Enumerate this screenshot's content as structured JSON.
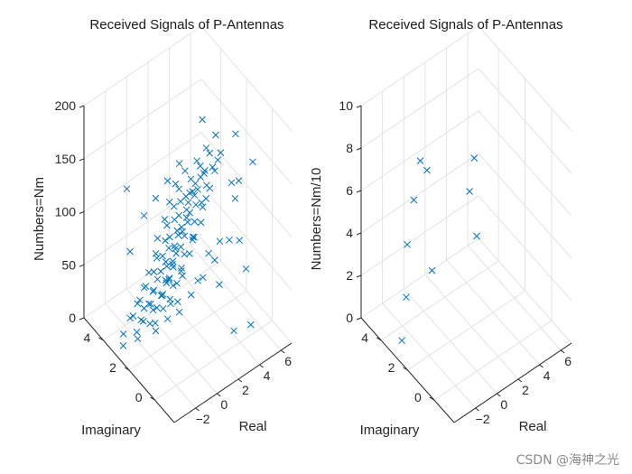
{
  "chart_data": [
    {
      "type": "scatter3d",
      "title": "Received Signals of P-Antennas",
      "xlabel": "Real",
      "ylabel": "Imaginary",
      "zlabel": "Numbers=Nm",
      "x_ticks": [
        -2,
        0,
        2,
        4,
        6
      ],
      "y_ticks": [
        0,
        2,
        4
      ],
      "z_ticks": [
        0,
        50,
        100,
        150,
        200
      ],
      "xlim": [
        -4,
        7
      ],
      "ylim": [
        -1.5,
        5.5
      ],
      "zlim": [
        0,
        200
      ],
      "grid": true,
      "marker": "x",
      "color": "#0072bd",
      "points": [
        [
          -3.1,
          3.2,
          0
        ],
        [
          -2.6,
          3.6,
          2
        ],
        [
          -2.1,
          2.9,
          4
        ],
        [
          -1.6,
          3.9,
          6
        ],
        [
          -1.1,
          3.3,
          8
        ],
        [
          -0.6,
          2.8,
          10
        ],
        [
          -0.1,
          3.7,
          12
        ],
        [
          0.4,
          3.0,
          14
        ],
        [
          0.9,
          3.5,
          16
        ],
        [
          1.4,
          2.7,
          18
        ],
        [
          1.9,
          3.8,
          20
        ],
        [
          -2.8,
          2.4,
          22
        ],
        [
          -2.3,
          3.1,
          24
        ],
        [
          -1.8,
          2.2,
          26
        ],
        [
          -1.3,
          3.4,
          28
        ],
        [
          -0.8,
          2.5,
          30
        ],
        [
          -0.3,
          3.2,
          32
        ],
        [
          0.2,
          2.3,
          34
        ],
        [
          0.7,
          3.0,
          36
        ],
        [
          1.2,
          2.6,
          38
        ],
        [
          1.7,
          3.3,
          40
        ],
        [
          -3.0,
          1.9,
          42
        ],
        [
          -2.5,
          2.6,
          44
        ],
        [
          -2.0,
          1.8,
          46
        ],
        [
          -1.5,
          2.9,
          48
        ],
        [
          -1.0,
          2.0,
          50
        ],
        [
          -0.5,
          2.7,
          52
        ],
        [
          0.0,
          1.9,
          54
        ],
        [
          0.5,
          2.8,
          56
        ],
        [
          1.0,
          2.1,
          58
        ],
        [
          1.5,
          2.9,
          60
        ],
        [
          -2.7,
          1.4,
          62
        ],
        [
          -2.2,
          2.2,
          64
        ],
        [
          -1.7,
          1.3,
          66
        ],
        [
          -1.2,
          2.4,
          68
        ],
        [
          -0.7,
          1.6,
          70
        ],
        [
          -0.2,
          2.3,
          72
        ],
        [
          0.3,
          1.5,
          74
        ],
        [
          0.8,
          2.4,
          76
        ],
        [
          1.3,
          1.7,
          78
        ],
        [
          1.8,
          2.5,
          80
        ],
        [
          -2.9,
          1.0,
          82
        ],
        [
          -2.4,
          1.8,
          84
        ],
        [
          -1.9,
          0.9,
          86
        ],
        [
          -1.4,
          2.0,
          88
        ],
        [
          -0.9,
          1.2,
          90
        ],
        [
          -0.4,
          1.9,
          92
        ],
        [
          0.1,
          1.1,
          94
        ],
        [
          0.6,
          2.0,
          96
        ],
        [
          1.1,
          1.3,
          98
        ],
        [
          1.6,
          2.1,
          100
        ],
        [
          -2.6,
          0.7,
          102
        ],
        [
          -2.1,
          1.5,
          104
        ],
        [
          -1.6,
          0.6,
          106
        ],
        [
          -1.1,
          1.6,
          108
        ],
        [
          -0.6,
          0.8,
          110
        ],
        [
          -0.1,
          1.5,
          112
        ],
        [
          0.4,
          0.7,
          114
        ],
        [
          0.9,
          1.6,
          116
        ],
        [
          1.4,
          0.9,
          118
        ],
        [
          1.9,
          1.7,
          120
        ],
        [
          -2.8,
          0.4,
          122
        ],
        [
          -2.3,
          1.2,
          124
        ],
        [
          -1.8,
          0.3,
          126
        ],
        [
          -1.3,
          1.3,
          128
        ],
        [
          -0.8,
          0.5,
          130
        ],
        [
          -0.3,
          1.2,
          132
        ],
        [
          0.2,
          0.4,
          134
        ],
        [
          0.7,
          1.3,
          136
        ],
        [
          1.2,
          0.6,
          138
        ],
        [
          1.7,
          1.4,
          140
        ],
        [
          -2.5,
          0.1,
          142
        ],
        [
          -2.0,
          0.9,
          144
        ],
        [
          -1.5,
          0.0,
          146
        ],
        [
          -1.0,
          1.0,
          148
        ],
        [
          -0.5,
          0.2,
          150
        ],
        [
          0.0,
          0.9,
          152
        ],
        [
          0.5,
          0.1,
          154
        ],
        [
          1.0,
          1.0,
          156
        ],
        [
          1.5,
          0.3,
          158
        ],
        [
          2.0,
          1.1,
          160
        ],
        [
          -2.4,
          -0.2,
          162
        ],
        [
          -1.9,
          0.6,
          164
        ],
        [
          -1.4,
          -0.3,
          166
        ],
        [
          -0.9,
          0.7,
          168
        ],
        [
          -0.4,
          -0.1,
          170
        ],
        [
          0.1,
          0.6,
          172
        ],
        [
          0.6,
          -0.2,
          174
        ],
        [
          1.1,
          0.7,
          176
        ],
        [
          1.6,
          0.0,
          178
        ],
        [
          2.1,
          0.8,
          180
        ],
        [
          -2.2,
          -0.5,
          182
        ],
        [
          -1.7,
          0.3,
          184
        ],
        [
          -1.2,
          -0.6,
          186
        ],
        [
          -0.7,
          0.4,
          188
        ],
        [
          -0.2,
          -0.4,
          190
        ],
        [
          0.3,
          0.3,
          192
        ],
        [
          0.8,
          -0.5,
          194
        ],
        [
          1.3,
          0.4,
          196
        ],
        [
          1.8,
          -0.3,
          198
        ],
        [
          2.3,
          0.5,
          200
        ],
        [
          -1.5,
          2.0,
          20
        ],
        [
          -1.0,
          1.5,
          35
        ],
        [
          -0.5,
          1.0,
          45
        ],
        [
          0.0,
          0.5,
          65
        ],
        [
          0.5,
          0.0,
          85
        ],
        [
          1.0,
          -0.5,
          105
        ],
        [
          -2.0,
          2.5,
          125
        ],
        [
          -1.5,
          2.0,
          145
        ],
        [
          -1.0,
          1.5,
          165
        ],
        [
          -0.5,
          1.0,
          185
        ],
        [
          0.5,
          2.5,
          25
        ],
        [
          1.0,
          2.0,
          55
        ],
        [
          1.5,
          1.5,
          95
        ],
        [
          2.0,
          1.0,
          135
        ],
        [
          2.5,
          0.5,
          175
        ],
        [
          -3.2,
          1.5,
          60
        ],
        [
          -3.3,
          2.5,
          100
        ],
        [
          -3.0,
          3.0,
          150
        ],
        [
          2.2,
          1.8,
          45
        ],
        [
          2.4,
          2.6,
          115
        ],
        [
          3.8,
          0.2,
          195
        ],
        [
          4.2,
          -0.8,
          180
        ],
        [
          3.5,
          -0.3,
          160
        ],
        [
          4.0,
          0.4,
          130
        ],
        [
          3.2,
          -0.6,
          110
        ],
        [
          3.7,
          0.6,
          90
        ],
        [
          4.3,
          -0.2,
          70
        ],
        [
          3.0,
          0.8,
          50
        ],
        [
          3.9,
          -0.9,
          30
        ],
        [
          3.4,
          0.0,
          15
        ],
        [
          2.6,
          1.3,
          75
        ],
        [
          2.8,
          0.6,
          95
        ],
        [
          2.9,
          1.9,
          140
        ],
        [
          2.7,
          -0.4,
          165
        ],
        [
          3.1,
          2.2,
          185
        ]
      ]
    },
    {
      "type": "scatter3d",
      "title": "Received Signals of P-Antennas",
      "xlabel": "Real",
      "ylabel": "Imaginary",
      "zlabel": "Numbers=Nm/10",
      "x_ticks": [
        -2,
        0,
        2,
        4,
        6
      ],
      "y_ticks": [
        0,
        2,
        4
      ],
      "z_ticks": [
        0,
        2,
        4,
        6,
        8,
        10
      ],
      "xlim": [
        -4,
        7
      ],
      "ylim": [
        -1.5,
        5.5
      ],
      "zlim": [
        0,
        10
      ],
      "grid": true,
      "marker": "x",
      "color": "#0072bd",
      "points": [
        [
          -2.8,
          3.4,
          0
        ],
        [
          -1.4,
          4.2,
          1
        ],
        [
          0.4,
          3.7,
          2
        ],
        [
          -0.8,
          4.6,
          3
        ],
        [
          2.6,
          2.1,
          4
        ],
        [
          -0.3,
          4.5,
          5
        ],
        [
          2.3,
          2.4,
          6
        ],
        [
          -0.2,
          3.6,
          7
        ],
        [
          -1.2,
          3.3,
          8
        ],
        [
          1.0,
          1.0,
          9
        ]
      ]
    }
  ],
  "watermark": "CSDN @海神之光"
}
